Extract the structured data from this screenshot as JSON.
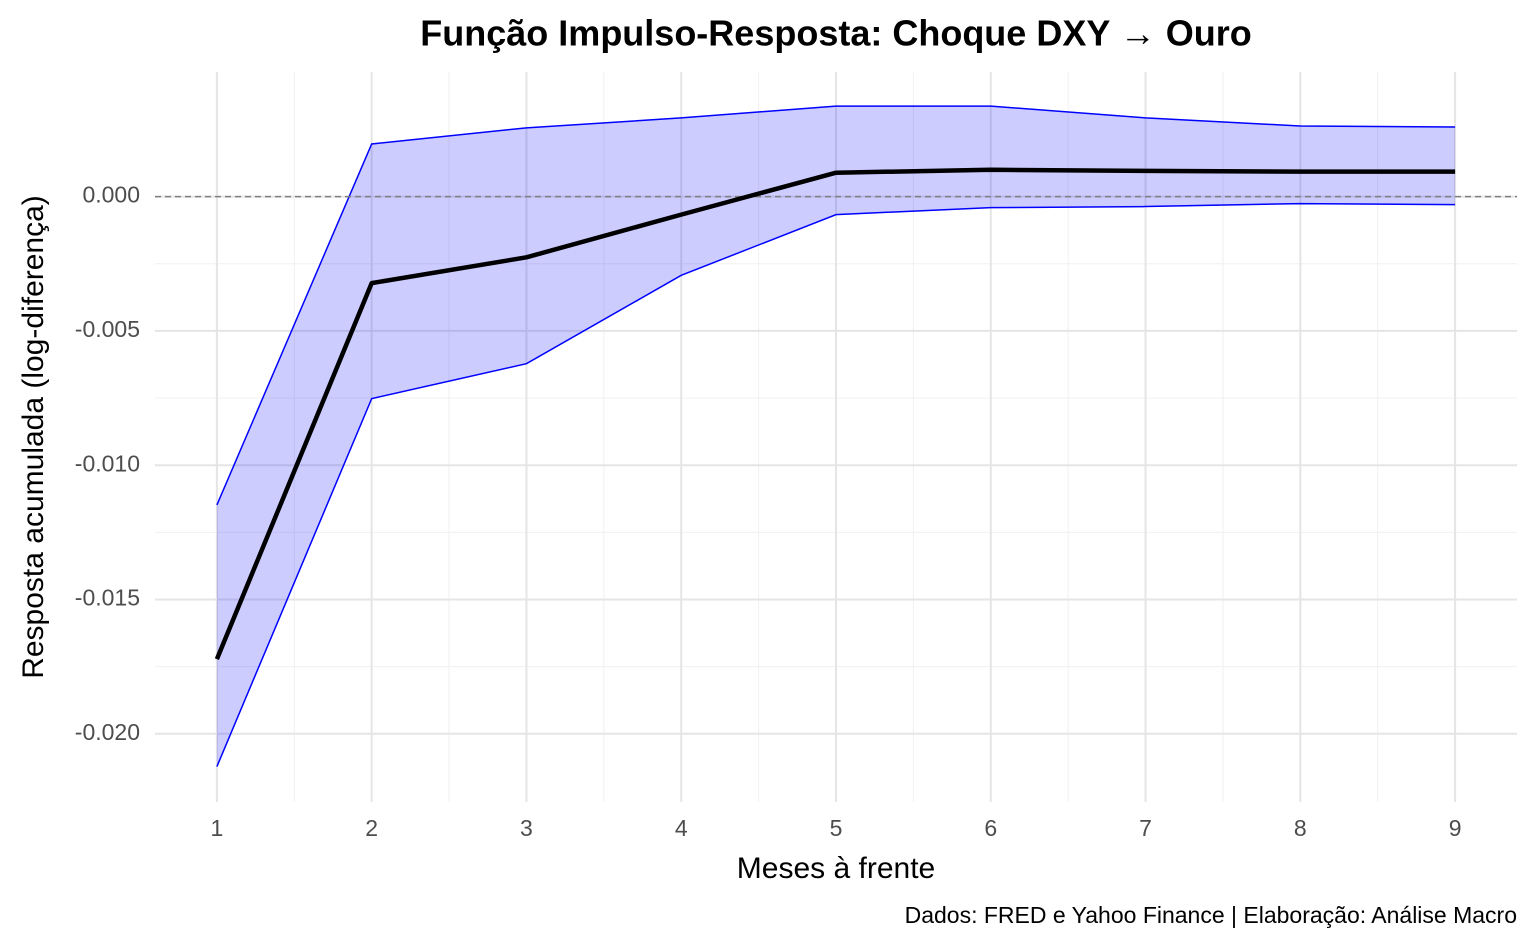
{
  "chart_data": {
    "type": "line-band",
    "title": "Função Impulso-Resposta: Choque DXY → Ouro",
    "x_label": "Meses à frente",
    "y_label": "Resposta acumulada (log-diferença)",
    "caption": "Dados: FRED e Yahoo Finance | Elaboração: Análise Macro",
    "x": [
      1,
      2,
      3,
      4,
      5,
      6,
      7,
      8,
      9
    ],
    "values": [
      -0.01722,
      -0.00322,
      -0.00226,
      -0.00067,
      0.00089,
      0.001,
      0.00096,
      0.00093,
      0.00093
    ],
    "upper": [
      -0.01148,
      0.00196,
      0.00256,
      0.00293,
      0.00337,
      0.00337,
      0.00293,
      0.00263,
      0.00259
    ],
    "lower": [
      -0.02122,
      -0.00752,
      -0.00622,
      -0.00293,
      -0.00067,
      -0.00041,
      -0.00037,
      -0.00026,
      -0.0003
    ],
    "color": "#000000",
    "band_color": "#0000ff",
    "hline": 0,
    "xlim": [
      0.6,
      9.4
    ],
    "xticks": [
      1,
      2,
      3,
      4,
      5,
      6,
      7,
      8,
      9
    ],
    "ylim": [
      -0.02254,
      0.00464
    ],
    "yticks": [
      {
        "value": -0.02,
        "label": "-0.020"
      },
      -0.015,
      {
        "value": -0.01,
        "label": "-0.010"
      },
      -0.005,
      {
        "value": 0,
        "label": "0.000"
      }
    ],
    "grid": true
  }
}
